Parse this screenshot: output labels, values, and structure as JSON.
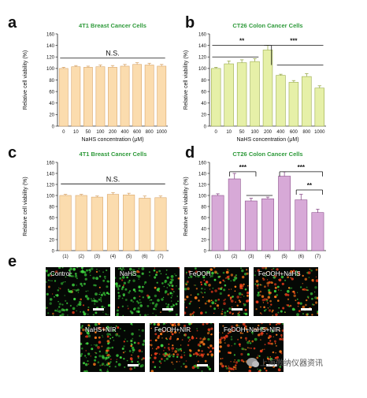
{
  "panel_letters": [
    "a",
    "b",
    "c",
    "d",
    "e"
  ],
  "colors": {
    "orange_bar": "#fbdcae",
    "orange_stroke": "#d9a66a",
    "green_bar": "#e6f0a8",
    "green_stroke": "#9aab4c",
    "pink_bar": "#d7a9d7",
    "pink_stroke": "#8c4f8c",
    "title_green": "#2e9a3a"
  },
  "chart_data": [
    {
      "panel": "a",
      "type": "bar",
      "title": "4T1 Breast Cancer Cells",
      "xlabel": "NaHS concentration (μM)",
      "ylabel": "Relative cell viability (%)",
      "ylim": [
        0,
        160
      ],
      "yticks": [
        "0",
        "20",
        "40",
        "60",
        "80",
        "100",
        "120",
        "140",
        "160"
      ],
      "categories": [
        "0",
        "10",
        "50",
        "100",
        "200",
        "400",
        "600",
        "800",
        "1000"
      ],
      "values": [
        100,
        103,
        102,
        103,
        102,
        104,
        107,
        106,
        104
      ],
      "errors": [
        2,
        2,
        2,
        3,
        3,
        3,
        3,
        3,
        3
      ],
      "annotations": [
        {
          "text": "N.S.",
          "from": 0,
          "to": 8,
          "y": 118
        }
      ]
    },
    {
      "panel": "b",
      "type": "bar",
      "title": "CT26 Colon Cancer Cells",
      "xlabel": "NaHS concentration (μM)",
      "ylabel": "Relative cell viability (%)",
      "ylim": [
        0,
        160
      ],
      "yticks": [
        "0",
        "20",
        "40",
        "60",
        "80",
        "100",
        "120",
        "140",
        "160"
      ],
      "categories": [
        "0",
        "10",
        "50",
        "100",
        "200",
        "400",
        "600",
        "800",
        "1000"
      ],
      "values": [
        100,
        108,
        110,
        112,
        132,
        88,
        76,
        86,
        66
      ],
      "errors": [
        2,
        5,
        5,
        5,
        8,
        2,
        3,
        5,
        4
      ],
      "annotations": [
        {
          "text": "**",
          "from": 0,
          "to": 4,
          "y": 140
        },
        {
          "text": "***",
          "from": 4,
          "to": 8,
          "y": 140
        }
      ]
    },
    {
      "panel": "c",
      "type": "bar",
      "title": "4T1 Breast Cancer Cells",
      "xlabel": "",
      "ylabel": "Relative cell viability (%)",
      "ylim": [
        0,
        160
      ],
      "yticks": [
        "0",
        "20",
        "40",
        "60",
        "80",
        "100",
        "120",
        "140",
        "160"
      ],
      "categories": [
        "(1)",
        "(2)",
        "(3)",
        "(4)",
        "(5)",
        "(6)",
        "(7)"
      ],
      "values": [
        100,
        100,
        97,
        102,
        101,
        95,
        96
      ],
      "errors": [
        2,
        2,
        2,
        3,
        3,
        4,
        3
      ],
      "annotations": [
        {
          "text": "N.S.",
          "from": 0,
          "to": 6,
          "y": 121
        }
      ]
    },
    {
      "panel": "d",
      "type": "bar",
      "title": "CT26 Colon Cancer Cells",
      "xlabel": "",
      "ylabel": "Relative cell viability (%)",
      "ylim": [
        0,
        160
      ],
      "yticks": [
        "0",
        "20",
        "40",
        "60",
        "80",
        "100",
        "120",
        "140",
        "160"
      ],
      "categories": [
        "(1)",
        "(2)",
        "(3)",
        "(4)",
        "(5)",
        "(6)",
        "(7)"
      ],
      "values": [
        100,
        130,
        90,
        94,
        135,
        92,
        69
      ],
      "errors": [
        3,
        10,
        5,
        3,
        8,
        10,
        6
      ],
      "annotations": [
        {
          "text": "***",
          "from": 1,
          "to": 2,
          "y": 143
        },
        {
          "text": "***",
          "from": 4,
          "to": 6,
          "y": 143
        },
        {
          "text": "**",
          "from": 5,
          "to": 6,
          "y": 110
        }
      ]
    }
  ],
  "micrographs": [
    {
      "label": "Control"
    },
    {
      "label": "NaHS"
    },
    {
      "label": "FeOOH"
    },
    {
      "label": "FeOOH+NaHS"
    },
    {
      "label": "NaHS+NIR"
    },
    {
      "label": "FeOOH+NIR"
    },
    {
      "label": "FeOOH+NaHS+NIR"
    }
  ],
  "watermark": "上海微纳仪器资讯"
}
